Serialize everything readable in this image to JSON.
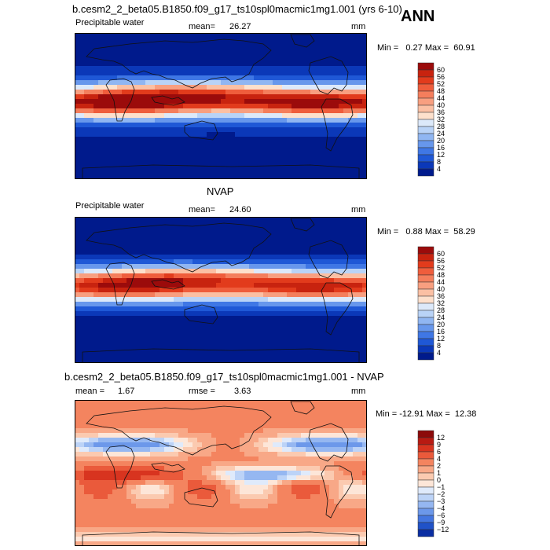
{
  "header": {
    "season": "ANN"
  },
  "chart_data": [
    {
      "type": "heatmap",
      "title": "b.cesm2_2_beta05.B1850.f09_g17_ts10spl0macmic1mg1.001 (yrs 6-10)",
      "field": "Precipitable water",
      "mean_label": "mean=",
      "mean": "26.27",
      "units": "mm",
      "minmax_text": "Min =   0.27 Max =  60.91",
      "min": 0.27,
      "max": 60.91,
      "colorbar_ticks": [
        "60",
        "56",
        "52",
        "48",
        "44",
        "40",
        "36",
        "32",
        "28",
        "24",
        "20",
        "16",
        "12",
        "8",
        "4"
      ],
      "colors": [
        "#9b0b0b",
        "#c8230f",
        "#e23b1c",
        "#ef5d3c",
        "#f47e5c",
        "#f89f80",
        "#fbc0a4",
        "#fde0cc",
        "#dce9fa",
        "#b9d3f7",
        "#90b6f2",
        "#6797ec",
        "#3f77e5",
        "#1f58d6",
        "#0b38b8",
        "#001a8c"
      ],
      "colormap": "sequential"
    },
    {
      "type": "heatmap",
      "title": "NVAP",
      "field": "Precipitable water",
      "mean_label": "mean=",
      "mean": "24.60",
      "units": "mm",
      "minmax_text": "Min =   0.88 Max =  58.29",
      "min": 0.88,
      "max": 58.29,
      "colorbar_ticks": [
        "60",
        "56",
        "52",
        "48",
        "44",
        "40",
        "36",
        "32",
        "28",
        "24",
        "20",
        "16",
        "12",
        "8",
        "4"
      ],
      "colors": [
        "#9b0b0b",
        "#c8230f",
        "#e23b1c",
        "#ef5d3c",
        "#f47e5c",
        "#f89f80",
        "#fbc0a4",
        "#fde0cc",
        "#dce9fa",
        "#b9d3f7",
        "#90b6f2",
        "#6797ec",
        "#3f77e5",
        "#1f58d6",
        "#0b38b8",
        "#001a8c"
      ],
      "colormap": "sequential"
    },
    {
      "type": "heatmap",
      "title": "b.cesm2_2_beta05.B1850.f09_g17_ts10spl0macmic1mg1.001 - NVAP",
      "mean_label": "mean =",
      "mean": "1.67",
      "rmse_label": "rmse =",
      "rmse": "3.63",
      "units": "mm",
      "minmax_text": "Min = -12.91 Max =  12.38",
      "min": -12.91,
      "max": 12.38,
      "colorbar_ticks": [
        "12",
        "9",
        "6",
        "4",
        "2",
        "1",
        "0",
        "−1",
        "−2",
        "−3",
        "−4",
        "−6",
        "−9",
        "−12"
      ],
      "colors": [
        "#8c0a0a",
        "#b81a12",
        "#d8341f",
        "#ea5a3b",
        "#f4845f",
        "#f8a887",
        "#fbcab0",
        "#fde6d8",
        "#dfeafb",
        "#bcd3f7",
        "#95b7f1",
        "#6c98ea",
        "#4476e0",
        "#2052c8",
        "#0a2ea3"
      ],
      "colormap": "diverging"
    }
  ]
}
